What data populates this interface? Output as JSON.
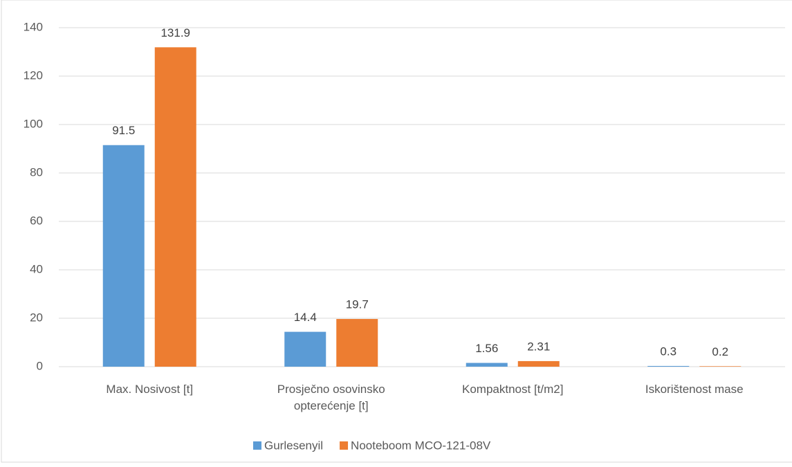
{
  "chart_data": {
    "type": "bar",
    "categories": [
      "Max. Nosivost [t]",
      "Prosječno osovinsko opterećenje [t]",
      "Kompaktnost [t/m2]",
      "Iskorištenost mase"
    ],
    "series": [
      {
        "name": "Gurlesenyil",
        "color": "#5b9bd5",
        "values": [
          91.5,
          14.4,
          1.56,
          0.3
        ]
      },
      {
        "name": "Nooteboom MCO-121-08V",
        "color": "#ed7d31",
        "values": [
          131.9,
          19.7,
          2.31,
          0.2
        ]
      }
    ],
    "ylim": [
      0,
      140
    ],
    "yticks": [
      0,
      20,
      40,
      60,
      80,
      100,
      120,
      140
    ],
    "grid": true,
    "legend": "bottom"
  }
}
